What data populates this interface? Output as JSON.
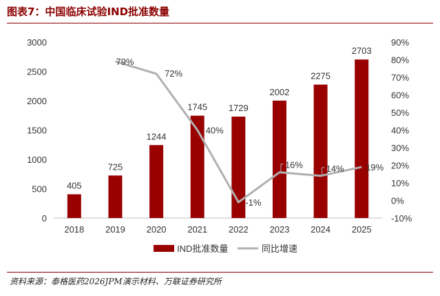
{
  "header": {
    "title": "图表7：中国临床试验IND批准数量"
  },
  "source": "资料来源：泰格医药2026JPM演示材料、万联证券研究所",
  "colors": {
    "bar": "#990000",
    "line": "#b0b0b0",
    "accent": "#8b0000"
  },
  "chart_data": {
    "type": "bar",
    "categories": [
      "2018",
      "2019",
      "2020",
      "2021",
      "2022",
      "2023",
      "2024",
      "2025"
    ],
    "series": [
      {
        "name": "IND批准数量",
        "type": "bar",
        "axis": "left",
        "values": [
          405,
          725,
          1244,
          1745,
          1729,
          2002,
          2275,
          2703
        ],
        "labels": [
          "405",
          "725",
          "1244",
          "1745",
          "1729",
          "2002",
          "2275",
          "2703"
        ]
      },
      {
        "name": "同比增速",
        "type": "line",
        "axis": "right",
        "values": [
          null,
          79,
          72,
          40,
          -1,
          16,
          14,
          19
        ],
        "labels": [
          "",
          "79%",
          "72%",
          "40%",
          "-1%",
          "16%",
          "14%",
          "19%"
        ]
      }
    ],
    "y_left": {
      "min": 0,
      "max": 3000,
      "ticks": [
        "0",
        "500",
        "1000",
        "1500",
        "2000",
        "2500",
        "3000"
      ]
    },
    "y_right": {
      "min": -10,
      "max": 90,
      "ticks": [
        "-10%",
        "0%",
        "10%",
        "20%",
        "30%",
        "40%",
        "50%",
        "60%",
        "70%",
        "80%",
        "90%"
      ]
    },
    "legend": [
      "IND批准数量",
      "同比增速"
    ],
    "legend_position": "bottom"
  }
}
